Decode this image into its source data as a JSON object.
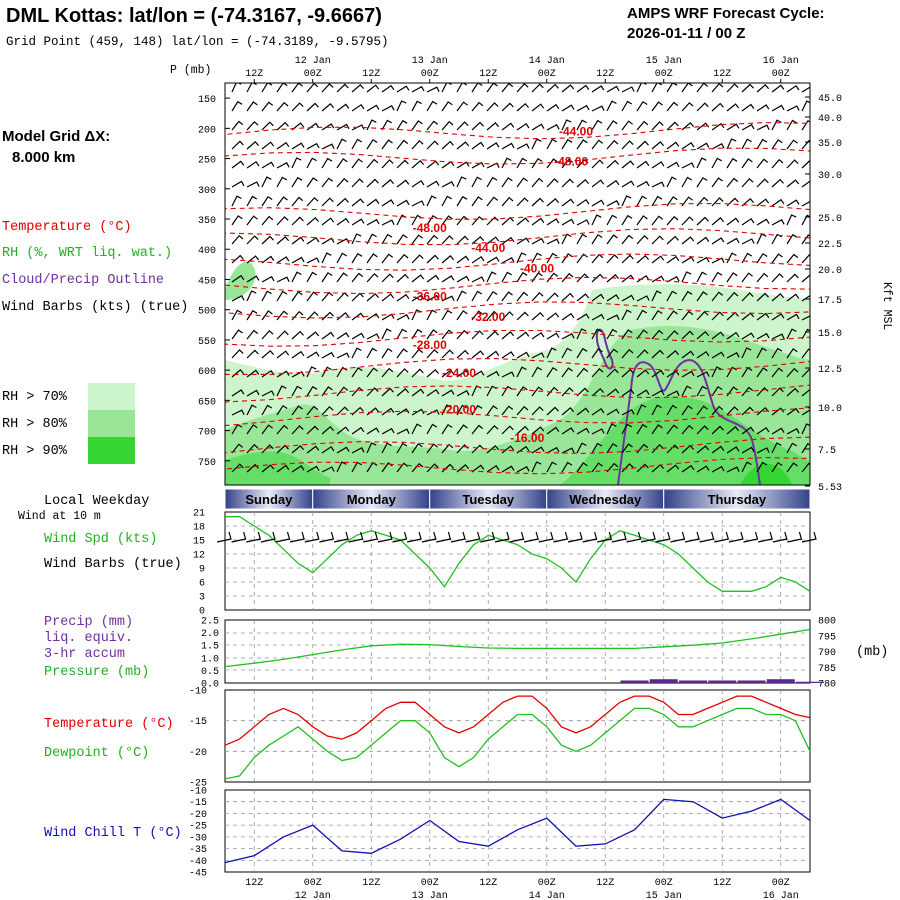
{
  "header": {
    "title": "DML Kottas:  lat/lon = (-74.3167, -9.6667)",
    "subtitle": "Grid Point (459, 148) lat/lon = (-74.3189, -9.5795)",
    "cycle_line1": "AMPS WRF Forecast Cycle:",
    "cycle_line2": "2026-01-11 / 00  Z"
  },
  "left_labels": {
    "model_grid": "Model Grid ΔX:",
    "grid_km": "8.000 km",
    "temperature": "Temperature (°C)",
    "rh": "RH (%, WRT liq. wat.)",
    "cloud": "Cloud/Precip Outline",
    "wind_barbs": "Wind Barbs (kts) (true)",
    "rh70": "RH > 70%",
    "rh80": "RH > 80%",
    "rh90": "RH > 90%",
    "local_weekday": "Local Weekday",
    "wind_at": "Wind at 10 m",
    "wind_spd": "Wind Spd (kts)",
    "wind_barbs2": "Wind Barbs (true)",
    "precip1": "Precip (mm)",
    "precip2": "liq. equiv.",
    "precip3": "3-hr accum",
    "pressure": "Pressure (mb)",
    "temp2": "Temperature (°C)",
    "dewpoint": "Dewpoint (°C)",
    "windchill": "Wind Chill T (°C)",
    "p_mb": "P (mb)",
    "mb": "(mb)",
    "kft": "Kft MSL"
  },
  "colors": {
    "temp": "#e00000",
    "rh": "#20c020",
    "cloud": "#7030a0",
    "windchill": "#1010b0",
    "rh70": "#ccf5cc",
    "rh80": "#99e699",
    "rh90": "#33d633",
    "day_band_center": "#e8eaf6",
    "day_band_edge": "#34418a"
  },
  "time_axis": {
    "hours": [
      0,
      6,
      12,
      18,
      24,
      30,
      36,
      42,
      48,
      54,
      60,
      66,
      72,
      78,
      84,
      90,
      96,
      102,
      108,
      114,
      120
    ],
    "top_ticks": [
      "12Z",
      "00Z",
      "12Z",
      "00Z",
      "12Z",
      "00Z",
      "12Z",
      "00Z",
      "12Z",
      "00Z"
    ],
    "top_dates": [
      "12 Jan",
      "13 Jan",
      "14 Jan",
      "15 Jan",
      "16 Jan"
    ],
    "weekdays": [
      "Sunday",
      "Monday",
      "Tuesday",
      "Wednesday",
      "Thursday"
    ]
  },
  "chart_data": [
    {
      "type": "contour",
      "name": "cross-section",
      "y_axis_pressure": [
        "150",
        "200",
        "250",
        "300",
        "350",
        "400",
        "450",
        "500",
        "550",
        "600",
        "650",
        "700",
        "750"
      ],
      "y_axis_height": [
        "45.0",
        "40.0",
        "35.0",
        "30.0",
        "25.0",
        "22.5",
        "20.0",
        "17.5",
        "15.0",
        "12.5",
        "10.0",
        "7.5",
        "5.53"
      ],
      "isotherm_labels": [
        {
          "label": "-44.00",
          "hour": 72,
          "p": 205
        },
        {
          "label": "-48.00",
          "hour": 71,
          "p": 255
        },
        {
          "label": "-48.00",
          "hour": 42,
          "p": 365
        },
        {
          "label": "-44.00",
          "hour": 54,
          "p": 398
        },
        {
          "label": "-40.00",
          "hour": 64,
          "p": 432
        },
        {
          "label": "-36.00",
          "hour": 42,
          "p": 478
        },
        {
          "label": "-32.00",
          "hour": 54,
          "p": 512
        },
        {
          "label": "-28.00",
          "hour": 42,
          "p": 558
        },
        {
          "label": "-24.00",
          "hour": 48,
          "p": 605
        },
        {
          "label": "-20.00",
          "hour": 48,
          "p": 665
        },
        {
          "label": "-16.00",
          "hour": 62,
          "p": 712
        }
      ]
    },
    {
      "type": "line",
      "name": "wind-speed",
      "ylabel": "Wind Spd (kts)",
      "ylim": [
        0,
        21
      ],
      "yticks": [
        "21",
        "18",
        "15",
        "12",
        "9",
        "6",
        "3",
        "0"
      ],
      "x": [
        0,
        3,
        6,
        9,
        12,
        15,
        18,
        21,
        24,
        27,
        30,
        33,
        36,
        39,
        42,
        45,
        48,
        51,
        54,
        57,
        60,
        63,
        66,
        69,
        72,
        75,
        78,
        81,
        84,
        87,
        90,
        93,
        96,
        99,
        102,
        105,
        108,
        111,
        114,
        117,
        120
      ],
      "values": [
        20,
        20,
        18,
        16,
        13,
        10,
        8,
        11,
        14,
        16,
        17,
        16,
        15,
        12,
        9,
        5,
        10,
        14,
        16,
        15,
        14,
        12,
        11,
        9,
        6,
        11,
        15,
        17,
        16,
        15,
        14,
        12,
        9,
        6,
        4,
        4,
        4,
        5,
        7,
        6,
        4
      ]
    },
    {
      "type": "line",
      "name": "pressure-precip",
      "ylabel": "Pressure (mb)",
      "precip_yticks": [
        "2.5",
        "2.0",
        "1.5",
        "1.0",
        "0.5",
        "0.0"
      ],
      "pressure_yticks": [
        "800",
        "795",
        "790",
        "785",
        "780"
      ],
      "pressure_ylim": [
        780,
        800
      ],
      "x": [
        0,
        6,
        12,
        18,
        24,
        30,
        36,
        42,
        48,
        54,
        60,
        66,
        72,
        78,
        84,
        90,
        96,
        102,
        108,
        114,
        120
      ],
      "pressure": [
        785.2,
        786.3,
        787.5,
        789.0,
        790.5,
        791.8,
        792.3,
        792.2,
        791.6,
        791.1,
        791.0,
        791.0,
        791.0,
        791.0,
        791.0,
        791.5,
        792.0,
        792.7,
        794.0,
        795.5,
        797.0
      ],
      "precip": [
        0,
        0,
        0,
        0,
        0,
        0,
        0,
        0,
        0,
        0,
        0,
        0,
        0,
        0,
        0.1,
        0.15,
        0.1,
        0.1,
        0.1,
        0.15,
        0.05
      ]
    },
    {
      "type": "line",
      "name": "temp-dewpoint",
      "ylim": [
        -25,
        -10
      ],
      "yticks": [
        "-10",
        "-15",
        "-20",
        "-25"
      ],
      "x": [
        0,
        3,
        6,
        9,
        12,
        15,
        18,
        21,
        24,
        27,
        30,
        33,
        36,
        39,
        42,
        45,
        48,
        51,
        54,
        57,
        60,
        63,
        66,
        69,
        72,
        75,
        78,
        81,
        84,
        87,
        90,
        93,
        96,
        99,
        102,
        105,
        108,
        111,
        114,
        117,
        120
      ],
      "temperature": [
        -19,
        -18,
        -16,
        -14,
        -13,
        -14,
        -16,
        -17.5,
        -18,
        -17,
        -15,
        -13,
        -12,
        -12,
        -14,
        -16,
        -17,
        -16,
        -14,
        -12,
        -11,
        -11,
        -13,
        -16,
        -17,
        -16,
        -14,
        -12,
        -11,
        -11,
        -12,
        -14,
        -14,
        -13,
        -12,
        -11,
        -11,
        -12,
        -13,
        -14,
        -14.5
      ],
      "dewpoint": [
        -24.5,
        -24,
        -21,
        -19,
        -17.5,
        -16,
        -18,
        -20,
        -21.5,
        -21,
        -19,
        -17,
        -15,
        -15,
        -17,
        -21,
        -22.5,
        -21,
        -18,
        -16,
        -14,
        -14,
        -16,
        -19,
        -20,
        -19,
        -17,
        -15,
        -13,
        -13,
        -14,
        -16,
        -16,
        -15,
        -14,
        -13,
        -13,
        -14,
        -14,
        -15,
        -20
      ]
    },
    {
      "type": "line",
      "name": "wind-chill",
      "ylabel": "Wind Chill T (°C)",
      "ylim": [
        -45,
        -10
      ],
      "yticks": [
        "-10",
        "-15",
        "-20",
        "-25",
        "-30",
        "-35",
        "-40",
        "-45"
      ],
      "x": [
        0,
        6,
        12,
        18,
        24,
        30,
        36,
        42,
        48,
        54,
        60,
        66,
        72,
        78,
        84,
        90,
        96,
        102,
        108,
        114,
        120
      ],
      "values": [
        -41,
        -38,
        -30,
        -25,
        -36,
        -37,
        -31,
        -23,
        -32,
        -34,
        -27,
        -22,
        -34,
        -33,
        -27,
        -14,
        -15,
        -22,
        -19,
        -14,
        -23
      ]
    }
  ]
}
